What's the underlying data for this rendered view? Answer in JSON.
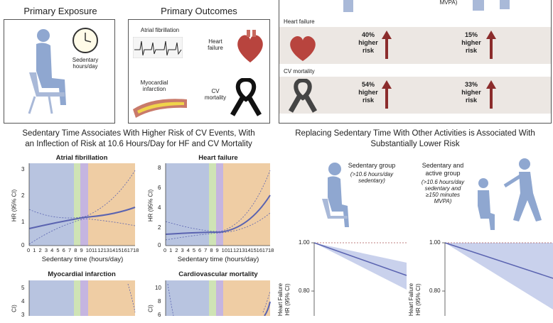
{
  "top": {
    "primary_exposure": "Primary Exposure",
    "primary_outcomes": "Primary Outcomes",
    "sedentary_label": "Sedentary hours/day",
    "outcomes": {
      "af": "Atrial fibrillation",
      "hf": "Heart failure",
      "mi": "Myocardial infarction",
      "cvm": "CV mortality"
    }
  },
  "risk_panel": {
    "top_note": "MVPA)",
    "rows": [
      {
        "label": "Heart failure",
        "left": "40%\nhigher\nrisk",
        "right": "15%\nhigher\nrisk"
      },
      {
        "label": "CV mortality",
        "left": "54%\nhigher\nrisk",
        "right": "33%\nhigher\nrisk"
      }
    ]
  },
  "left_section": {
    "title_line1": "Sedentary Time Associates With Higher Risk of CV Events, With",
    "title_line2": "an Inflection of Risk at 10.6 Hours/Day for HF and CV Mortality",
    "xlabel": "Sedentary time (hours/day)",
    "ylabel": "HR (95% CI)",
    "ylabel_short": "CI)",
    "x_ticks": [
      "0",
      "1",
      "2",
      "3",
      "4",
      "5",
      "6",
      "7",
      "8",
      "9",
      "10",
      "11",
      "12",
      "13",
      "14",
      "15",
      "16",
      "17",
      "18"
    ],
    "charts": [
      {
        "title": "Atrial fibrillation",
        "y_ticks": [
          "3",
          "2",
          "1",
          "0"
        ]
      },
      {
        "title": "Heart failure",
        "y_ticks": [
          "8",
          "6",
          "4",
          "2",
          "0"
        ]
      },
      {
        "title": "Myocardial infarction",
        "y_ticks": [
          "5",
          "4",
          "3"
        ]
      },
      {
        "title": "Cardiovascular mortality",
        "y_ticks": [
          "10",
          "8",
          "6"
        ]
      }
    ]
  },
  "right_section": {
    "title_line1": "Replacing Sedentary Time With Other Activities is Associated With",
    "title_line2": "Substantially Lower Risk",
    "group1": {
      "name": "Sedentary group",
      "desc": "(>10.6 hours/day\nsedentary)"
    },
    "group2": {
      "name": "Sedentary and\nactive group",
      "desc": "(>10.6 hours/day\nsedentary and\n≥150 minutes\nMVPA)"
    },
    "y_ticks": [
      "1.00",
      "0.80"
    ],
    "ylabel": "Heart Failure\nHR (95% CI)"
  },
  "colors": {
    "blue_band": "#b8c4e0",
    "green_band": "#cfe3b5",
    "purple_band": "#c5b5e0",
    "orange_band": "#efcda4",
    "line": "#5a63b0",
    "arrow": "#8b2c2c"
  }
}
